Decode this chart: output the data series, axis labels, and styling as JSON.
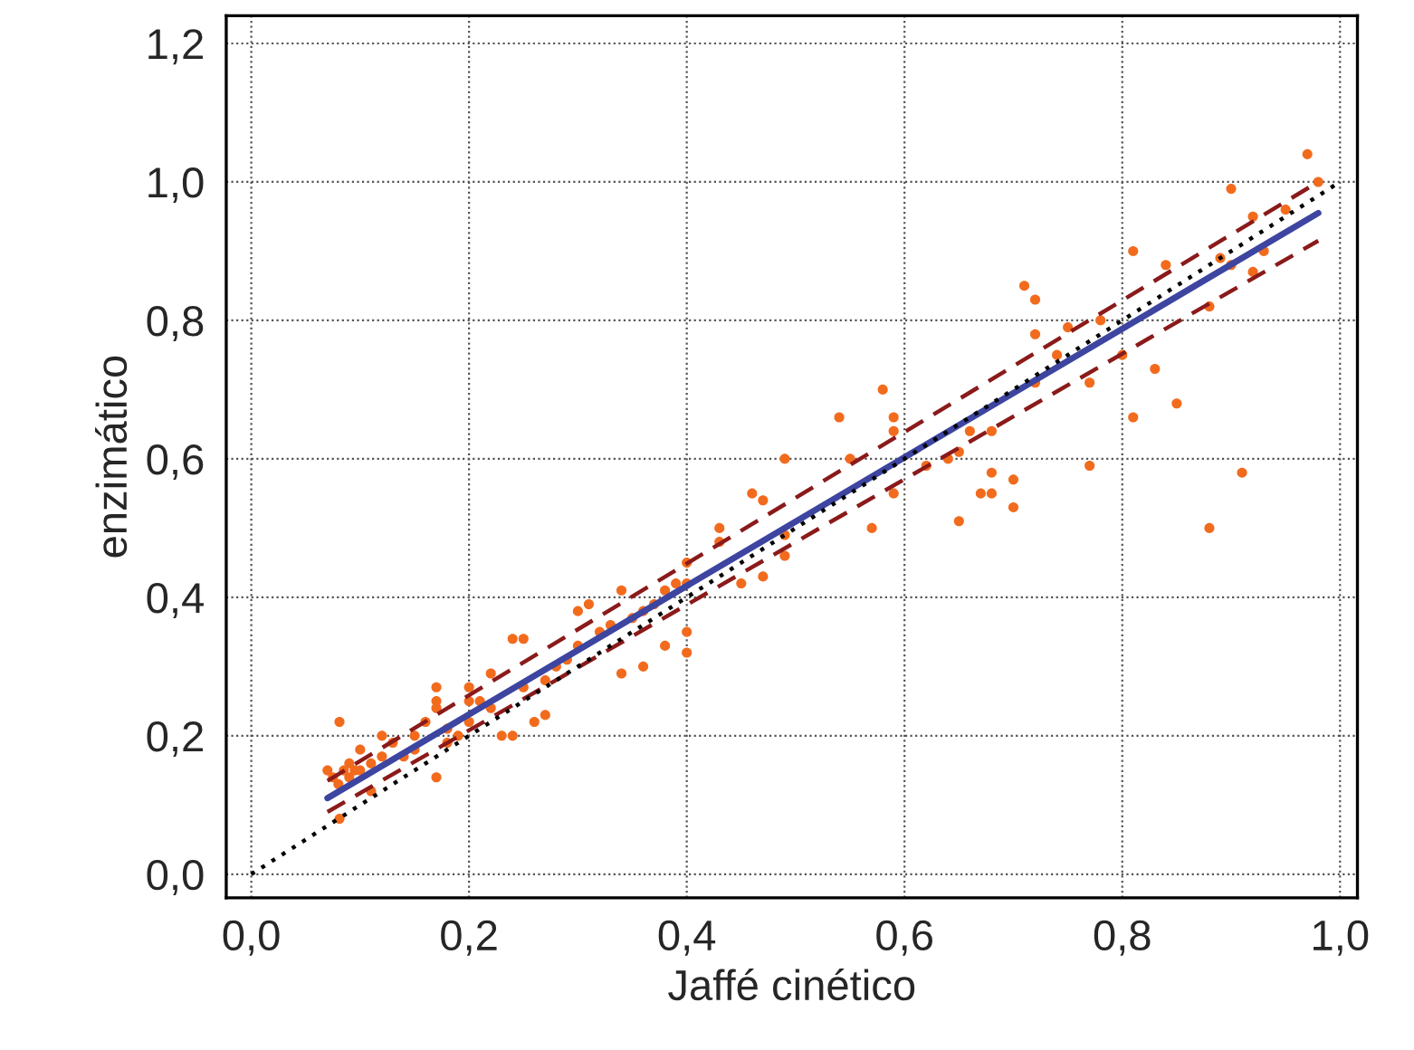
{
  "chart_data": {
    "type": "scatter",
    "xlabel": "Jaffé cinético",
    "ylabel": "enzimático",
    "xlim": [
      -0.023,
      1.016
    ],
    "ylim": [
      -0.034,
      1.24
    ],
    "xticks": [
      {
        "value": 0,
        "label": "0,0"
      },
      {
        "value": 0.2,
        "label": "0,2"
      },
      {
        "value": 0.4,
        "label": "0,4"
      },
      {
        "value": 0.6,
        "label": "0,6"
      },
      {
        "value": 0.8,
        "label": "0,8"
      },
      {
        "value": 1.0,
        "label": "1,0"
      }
    ],
    "yticks": [
      {
        "value": 0,
        "label": "0,0"
      },
      {
        "value": 0.2,
        "label": "0,2"
      },
      {
        "value": 0.4,
        "label": "0,4"
      },
      {
        "value": 0.6,
        "label": "0,6"
      },
      {
        "value": 0.8,
        "label": "0,8"
      },
      {
        "value": 1.0,
        "label": "1,0"
      },
      {
        "value": 1.2,
        "label": "1,2"
      }
    ],
    "grid": true,
    "legend": false,
    "series": [
      {
        "color": "#f26b1d",
        "marker": "circle",
        "x": [
          0.07,
          0.075,
          0.081,
          0.08,
          0.085,
          0.09,
          0.09,
          0.095,
          0.1,
          0.1,
          0.11,
          0.11,
          0.12,
          0.13,
          0.14,
          0.15,
          0.16,
          0.17,
          0.17,
          0.18,
          0.18,
          0.19,
          0.2,
          0.2,
          0.081,
          0.12,
          0.15,
          0.17,
          0.17,
          0.2,
          0.24,
          0.25,
          0.22,
          0.26,
          0.27,
          0.23,
          0.24,
          0.34,
          0.3,
          0.31,
          0.21,
          0.22,
          0.25,
          0.27,
          0.28,
          0.29,
          0.3,
          0.32,
          0.33,
          0.35,
          0.36,
          0.37,
          0.38,
          0.39,
          0.58,
          0.54,
          0.49,
          0.55,
          0.46,
          0.47,
          0.43,
          0.43,
          0.57,
          0.49,
          0.49,
          0.47,
          0.45,
          0.4,
          0.4,
          0.4,
          0.4,
          0.38,
          0.34,
          0.36,
          0.81,
          0.84,
          0.71,
          0.72,
          0.72,
          0.75,
          0.78,
          0.74,
          0.77,
          0.8,
          0.83,
          0.85,
          0.81,
          0.88,
          0.9,
          0.89,
          0.93,
          0.92,
          0.59,
          0.59,
          0.59,
          0.65,
          0.67,
          0.68,
          0.68,
          0.7,
          0.7,
          0.65,
          0.64,
          0.62,
          0.66,
          0.68,
          0.77,
          0.88,
          0.91,
          0.72,
          0.97,
          0.98,
          0.9,
          0.92,
          0.95
        ],
        "values": [
          0.15,
          0.14,
          0.22,
          0.13,
          0.15,
          0.14,
          0.16,
          0.15,
          0.18,
          0.15,
          0.12,
          0.16,
          0.17,
          0.19,
          0.17,
          0.2,
          0.22,
          0.24,
          0.25,
          0.19,
          0.21,
          0.2,
          0.25,
          0.22,
          0.08,
          0.2,
          0.18,
          0.14,
          0.27,
          0.27,
          0.34,
          0.34,
          0.29,
          0.22,
          0.23,
          0.2,
          0.2,
          0.29,
          0.38,
          0.39,
          0.25,
          0.24,
          0.27,
          0.28,
          0.3,
          0.31,
          0.33,
          0.35,
          0.36,
          0.37,
          0.38,
          0.39,
          0.41,
          0.42,
          0.7,
          0.66,
          0.6,
          0.6,
          0.55,
          0.54,
          0.5,
          0.48,
          0.5,
          0.49,
          0.46,
          0.43,
          0.42,
          0.45,
          0.42,
          0.35,
          0.32,
          0.33,
          0.41,
          0.3,
          0.9,
          0.88,
          0.85,
          0.83,
          0.78,
          0.79,
          0.8,
          0.75,
          0.71,
          0.75,
          0.73,
          0.68,
          0.66,
          0.82,
          0.88,
          0.89,
          0.9,
          0.87,
          0.66,
          0.64,
          0.55,
          0.51,
          0.55,
          0.55,
          0.58,
          0.57,
          0.53,
          0.61,
          0.6,
          0.59,
          0.64,
          0.64,
          0.59,
          0.5,
          0.58,
          0.71,
          1.04,
          1.0,
          0.99,
          0.95,
          0.96
        ]
      },
      {
        "type": "line",
        "color": "#3d45a0",
        "line_style": "solid",
        "x": [
          0.07,
          0.98
        ],
        "values": [
          0.11,
          0.955
        ]
      },
      {
        "type": "line",
        "color": "#8b1a1a",
        "line_style": "dashed",
        "x": [
          0.07,
          0.98
        ],
        "values": [
          0.135,
          1.0
        ]
      },
      {
        "type": "line",
        "color": "#8b1a1a",
        "line_style": "dashed",
        "x": [
          0.07,
          0.98
        ],
        "values": [
          0.09,
          0.915
        ]
      },
      {
        "type": "line",
        "color": "#000000",
        "line_style": "dotted",
        "x": [
          0,
          1.0
        ],
        "values": [
          0,
          1.0
        ]
      }
    ]
  }
}
